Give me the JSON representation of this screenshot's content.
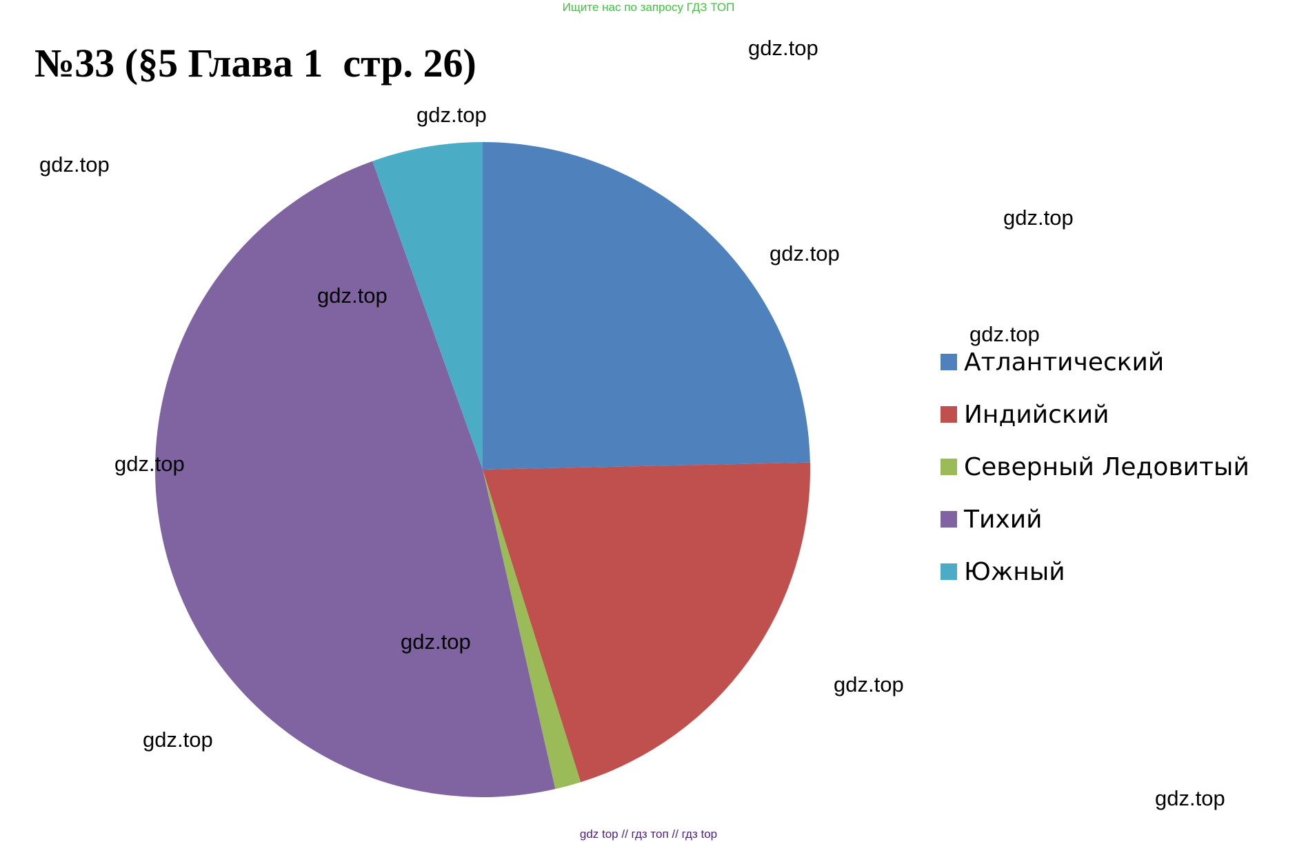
{
  "top_banner": "Ищите нас по запросу ГДЗ ТОП",
  "title": "№33 (§5 Глава 1  стр. 26)",
  "watermark_text": "gdz.top",
  "footer": {
    "link1": "gdz top",
    "sep1": "//",
    "link2": "гдз топ",
    "sep2": "//",
    "link3": "гдз top"
  },
  "chart_data": {
    "type": "pie",
    "title": "",
    "start_angle_deg": 0,
    "direction": "clockwise",
    "legend_position": "right",
    "slices": [
      {
        "label": "Атлантический",
        "value": 91.6,
        "color": "#4F81BD"
      },
      {
        "label": "Индийский",
        "value": 76.2,
        "color": "#C0504D"
      },
      {
        "label": "Северный Ледовитый",
        "value": 4.75,
        "color": "#9BBB59"
      },
      {
        "label": "Тихий",
        "value": 178.7,
        "color": "#8064A2"
      },
      {
        "label": "Южный",
        "value": 20.3,
        "color": "#4BACC6"
      }
    ]
  }
}
